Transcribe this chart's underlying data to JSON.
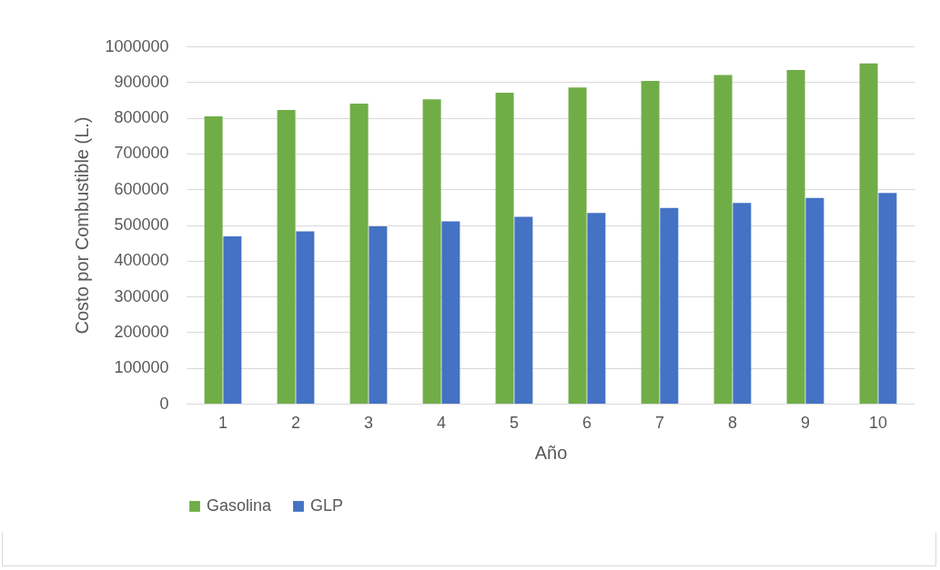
{
  "chart_data": {
    "type": "bar",
    "xlabel": "Año",
    "ylabel": "Costo por Combustible (L.)",
    "categories": [
      "1",
      "2",
      "3",
      "4",
      "5",
      "6",
      "7",
      "8",
      "9",
      "10"
    ],
    "series": [
      {
        "name": "Gasolina",
        "color": "#70ad47",
        "values": [
          804000,
          822000,
          840000,
          852000,
          870000,
          885000,
          903000,
          920000,
          934000,
          952000
        ]
      },
      {
        "name": "GLP",
        "color": "#4472c4",
        "values": [
          468000,
          482000,
          496000,
          510000,
          523000,
          534000,
          548000,
          562000,
          576000,
          590000
        ]
      }
    ],
    "ylim": [
      0,
      1000000
    ],
    "yticks": [
      0,
      100000,
      200000,
      300000,
      400000,
      500000,
      600000,
      700000,
      800000,
      900000,
      1000000
    ],
    "grid": "y",
    "legend": "bottom"
  }
}
